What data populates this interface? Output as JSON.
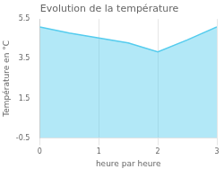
{
  "chart_data": {
    "type": "area",
    "title": "Evolution de la température",
    "xlabel": "heure par heure",
    "ylabel": "Température en °C",
    "x": [
      0,
      0.5,
      1,
      1.5,
      2,
      2.5,
      3
    ],
    "values": [
      5.1,
      4.8,
      4.55,
      4.3,
      3.85,
      4.45,
      5.1
    ],
    "color": "#55ccee",
    "xlim": [
      0,
      3
    ],
    "xticks": [
      0,
      1,
      2,
      3
    ],
    "ylim": [
      -0.5,
      5.5
    ],
    "yticks": [
      -0.5,
      1.5,
      3.5,
      5.5
    ],
    "grid": "x"
  }
}
